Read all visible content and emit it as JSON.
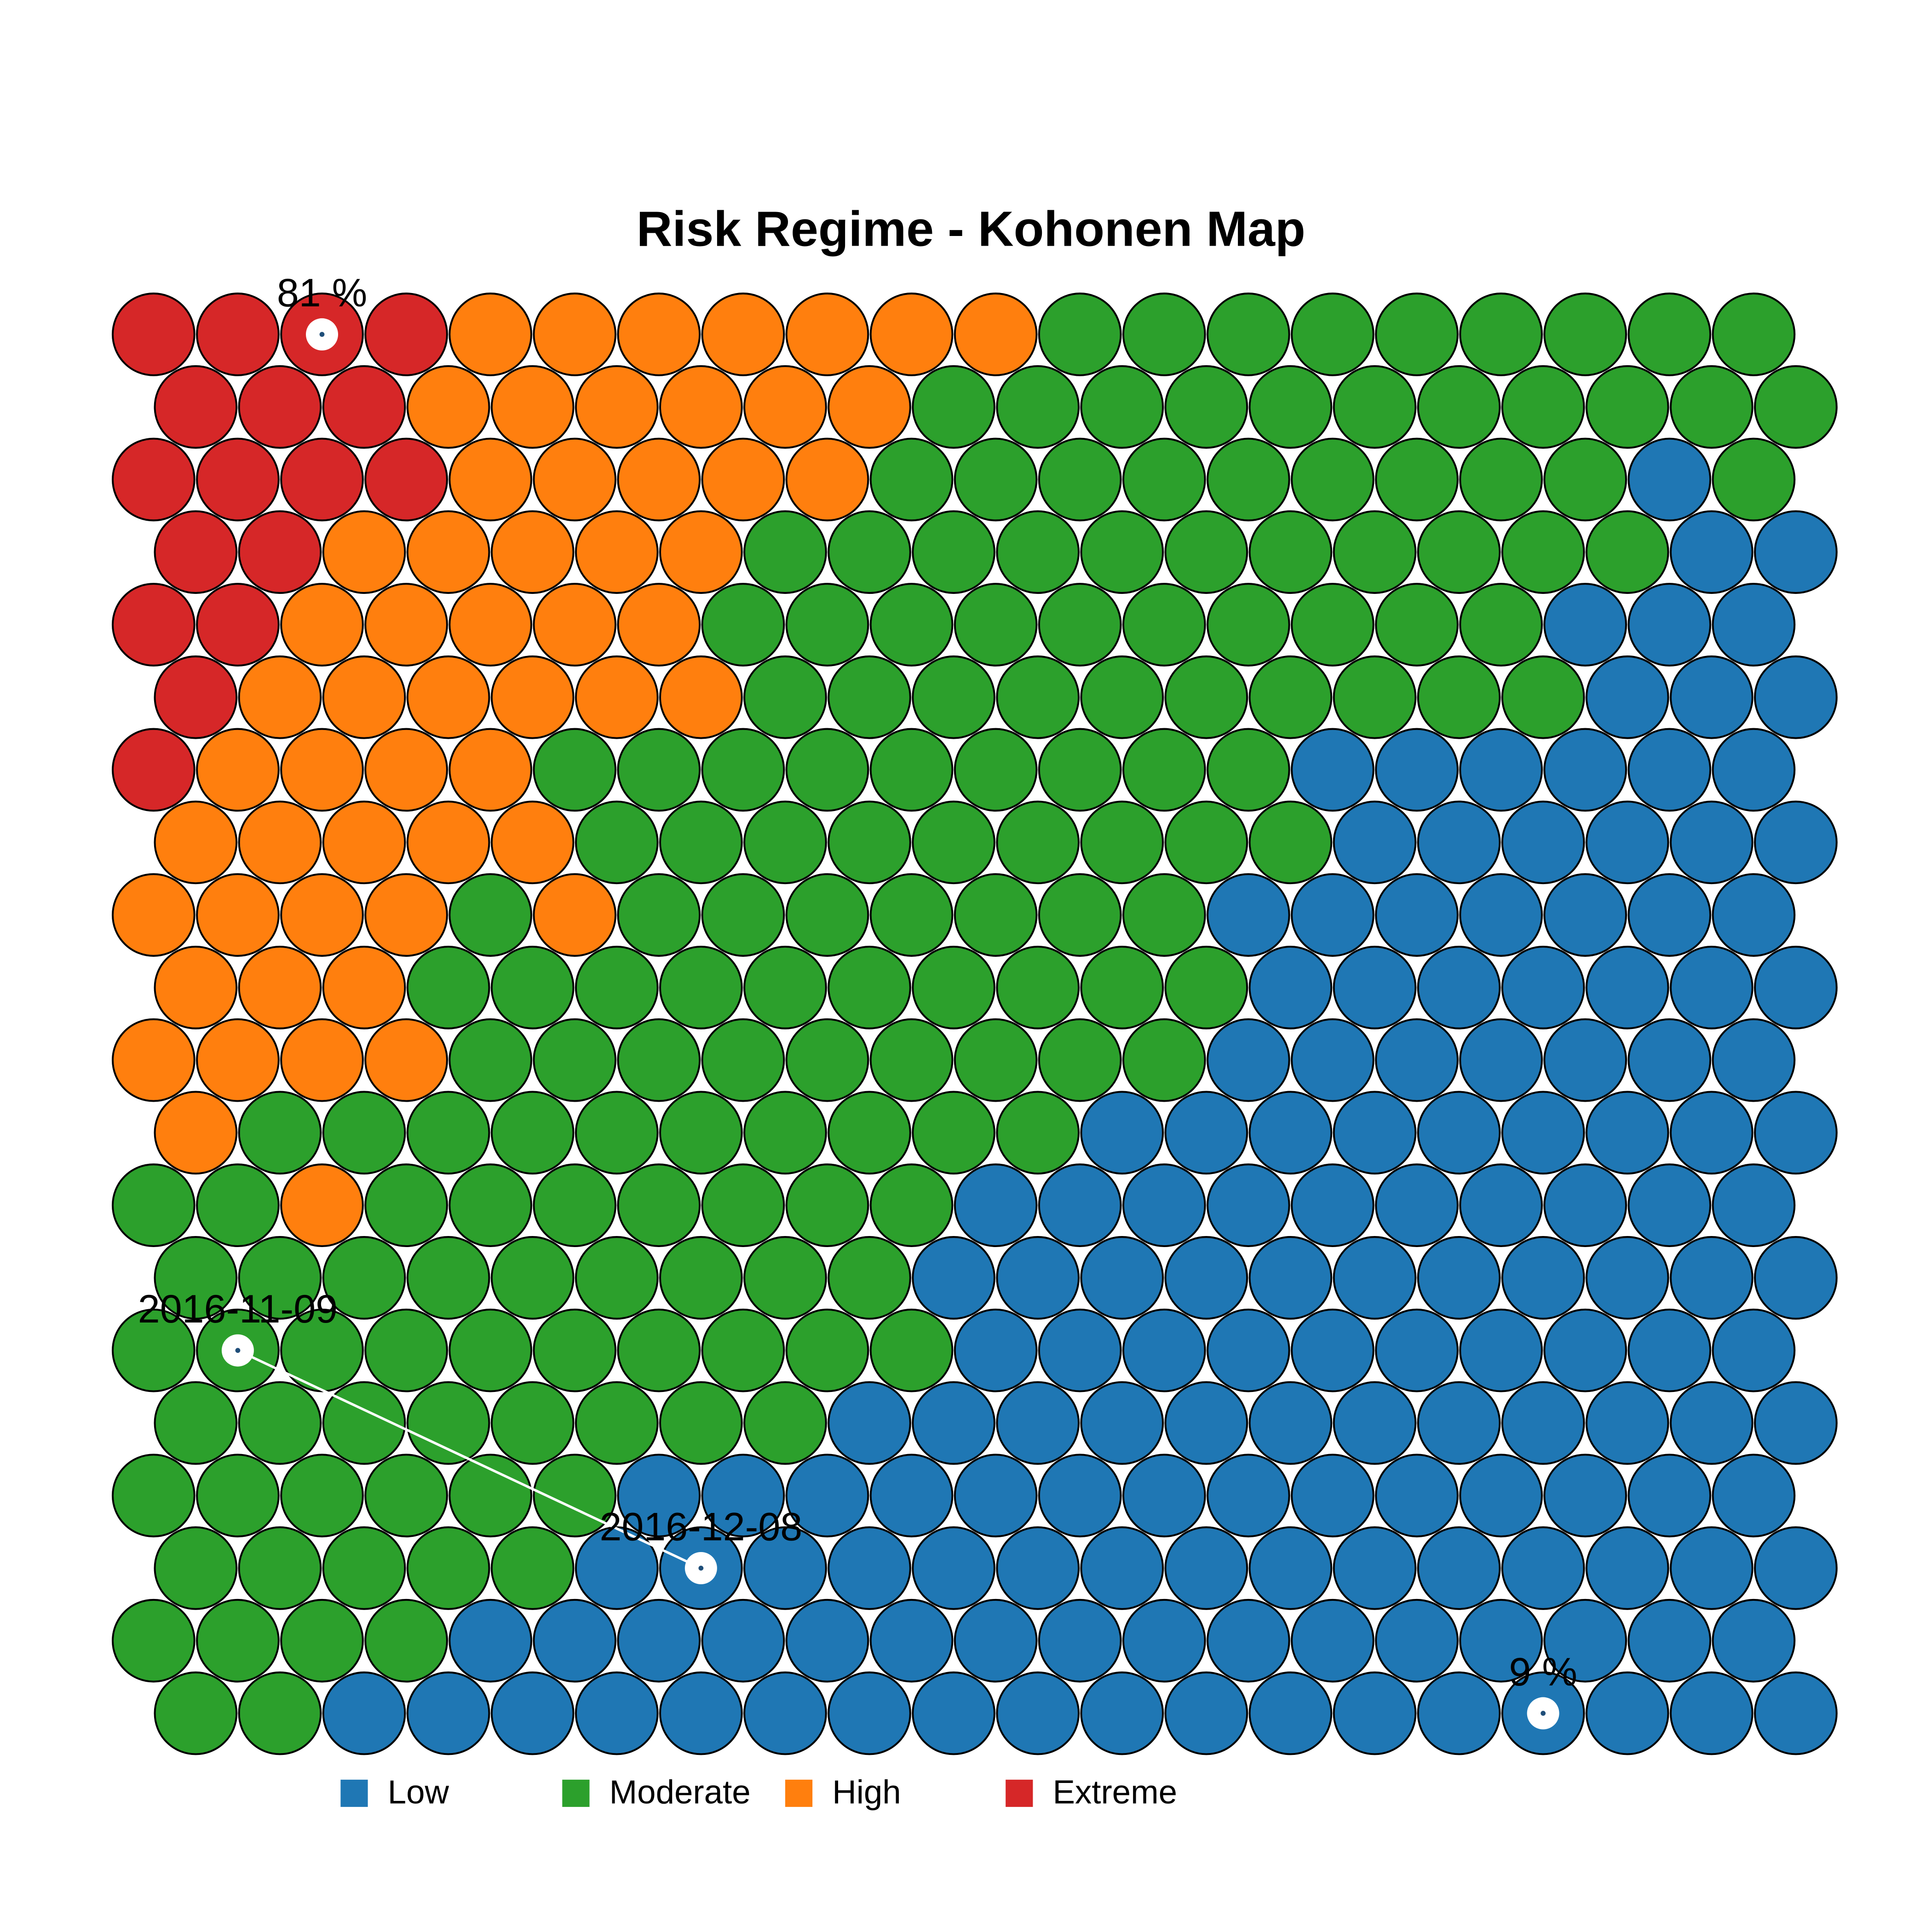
{
  "chart_data": {
    "type": "kohonen",
    "title": "Risk Regime - Kohonen Map",
    "categories": [
      "Low",
      "Moderate",
      "High",
      "Extreme"
    ],
    "colors": [
      "#1f77b4",
      "#2ca02c",
      "#ff7f0e",
      "#d62728"
    ],
    "cells": [
      [
        3,
        3,
        3,
        3,
        2,
        2,
        2,
        2,
        2,
        2,
        2,
        1,
        1,
        1,
        1,
        1,
        1,
        1,
        1,
        1
      ],
      [
        3,
        3,
        3,
        2,
        2,
        2,
        2,
        2,
        2,
        1,
        1,
        1,
        1,
        1,
        1,
        1,
        1,
        1,
        1,
        1
      ],
      [
        3,
        3,
        3,
        3,
        2,
        2,
        2,
        2,
        2,
        1,
        1,
        1,
        1,
        1,
        1,
        1,
        1,
        1,
        0,
        1
      ],
      [
        3,
        3,
        2,
        2,
        2,
        2,
        2,
        1,
        1,
        1,
        1,
        1,
        1,
        1,
        1,
        1,
        1,
        1,
        0,
        0
      ],
      [
        3,
        3,
        2,
        2,
        2,
        2,
        2,
        1,
        1,
        1,
        1,
        1,
        1,
        1,
        1,
        1,
        1,
        0,
        0,
        0
      ],
      [
        3,
        2,
        2,
        2,
        2,
        2,
        2,
        1,
        1,
        1,
        1,
        1,
        1,
        1,
        1,
        1,
        1,
        0,
        0,
        0
      ],
      [
        3,
        2,
        2,
        2,
        2,
        1,
        1,
        1,
        1,
        1,
        1,
        1,
        1,
        1,
        0,
        0,
        0,
        0,
        0,
        0
      ],
      [
        2,
        2,
        2,
        2,
        2,
        1,
        1,
        1,
        1,
        1,
        1,
        1,
        1,
        1,
        0,
        0,
        0,
        0,
        0,
        0
      ],
      [
        2,
        2,
        2,
        2,
        1,
        2,
        1,
        1,
        1,
        1,
        1,
        1,
        1,
        0,
        0,
        0,
        0,
        0,
        0,
        0
      ],
      [
        2,
        2,
        2,
        1,
        1,
        1,
        1,
        1,
        1,
        1,
        1,
        1,
        1,
        0,
        0,
        0,
        0,
        0,
        0,
        0
      ],
      [
        2,
        2,
        2,
        2,
        1,
        1,
        1,
        1,
        1,
        1,
        1,
        1,
        1,
        0,
        0,
        0,
        0,
        0,
        0,
        0
      ],
      [
        2,
        1,
        1,
        1,
        1,
        1,
        1,
        1,
        1,
        1,
        1,
        0,
        0,
        0,
        0,
        0,
        0,
        0,
        0,
        0
      ],
      [
        1,
        1,
        2,
        1,
        1,
        1,
        1,
        1,
        1,
        1,
        0,
        0,
        0,
        0,
        0,
        0,
        0,
        0,
        0,
        0
      ],
      [
        1,
        1,
        1,
        1,
        1,
        1,
        1,
        1,
        1,
        0,
        0,
        0,
        0,
        0,
        0,
        0,
        0,
        0,
        0,
        0
      ],
      [
        1,
        1,
        1,
        1,
        1,
        1,
        1,
        1,
        1,
        1,
        0,
        0,
        0,
        0,
        0,
        0,
        0,
        0,
        0,
        0
      ],
      [
        1,
        1,
        1,
        1,
        1,
        1,
        1,
        1,
        0,
        0,
        0,
        0,
        0,
        0,
        0,
        0,
        0,
        0,
        0,
        0
      ],
      [
        1,
        1,
        1,
        1,
        1,
        1,
        0,
        0,
        0,
        0,
        0,
        0,
        0,
        0,
        0,
        0,
        0,
        0,
        0,
        0
      ],
      [
        1,
        1,
        1,
        1,
        1,
        0,
        0,
        0,
        0,
        0,
        0,
        0,
        0,
        0,
        0,
        0,
        0,
        0,
        0,
        0
      ],
      [
        1,
        1,
        1,
        1,
        0,
        0,
        0,
        0,
        0,
        0,
        0,
        0,
        0,
        0,
        0,
        0,
        0,
        0,
        0,
        0
      ],
      [
        1,
        1,
        0,
        0,
        0,
        0,
        0,
        0,
        0,
        0,
        0,
        0,
        0,
        0,
        0,
        0,
        0,
        0,
        0,
        0
      ]
    ],
    "annotations": [
      {
        "text": "81 %",
        "cell": [
          0,
          2
        ]
      },
      {
        "text": "2016-11-09",
        "cell": [
          14,
          1
        ]
      },
      {
        "text": "2016-12-08",
        "cell": [
          17,
          6
        ]
      },
      {
        "text": "9 %",
        "cell": [
          19,
          16
        ]
      }
    ],
    "trajectory": [
      1,
      2
    ]
  }
}
